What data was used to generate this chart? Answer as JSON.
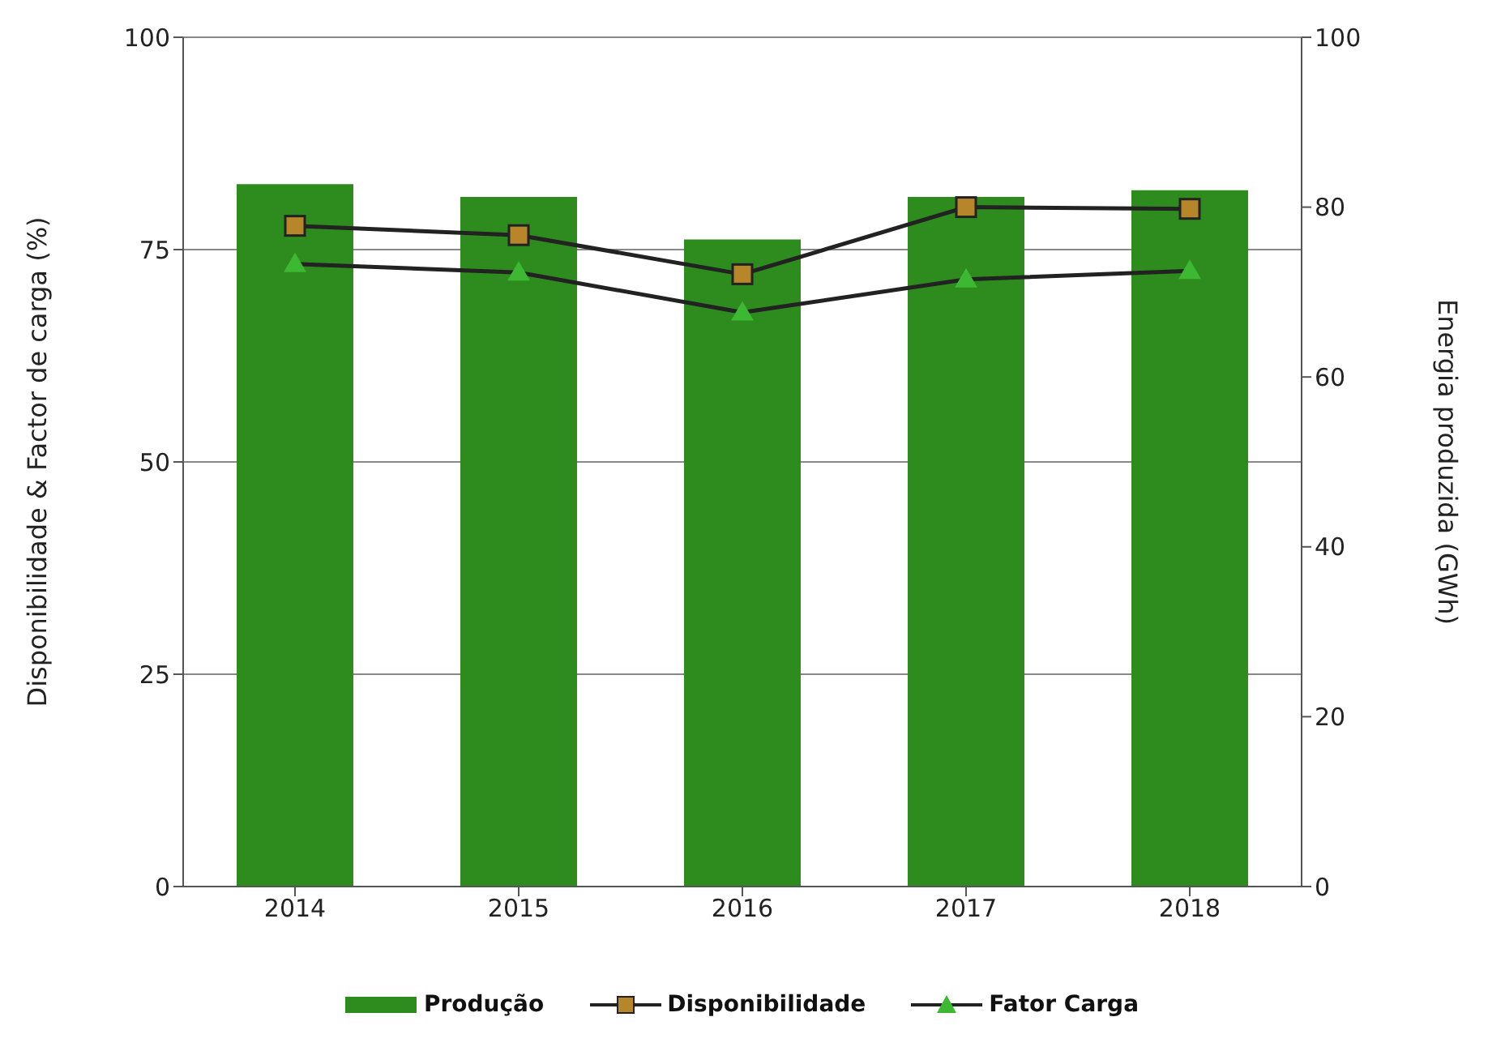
{
  "chart_data": {
    "type": "bar",
    "categories": [
      "2014",
      "2015",
      "2016",
      "2017",
      "2018"
    ],
    "ylabel": "Disponibilidade & Factor de carga (%)",
    "y2label": "Energia produzida (GWh)",
    "ylim": [
      0,
      100
    ],
    "yticks": [
      0,
      25,
      50,
      75,
      100
    ],
    "y2lim": [
      0,
      100
    ],
    "y2ticks": [
      0,
      20,
      40,
      60,
      80,
      100
    ],
    "grid": "y",
    "legend": "bottom",
    "series": [
      {
        "name": "Produção",
        "color": "#2e8b1e",
        "values": [
          82.7,
          81.2,
          76.2,
          81.2,
          82.0
        ]
      },
      {
        "name": "Disponibilidade",
        "type": "line",
        "marker": "square",
        "color": "#b8862a",
        "values": [
          77.8,
          76.7,
          72.1,
          80.0,
          79.8
        ]
      },
      {
        "name": "Fator Carga",
        "type": "line",
        "marker": "triangle",
        "color": "#3cb832",
        "values": [
          73.3,
          72.3,
          67.6,
          71.5,
          72.5
        ]
      }
    ]
  }
}
